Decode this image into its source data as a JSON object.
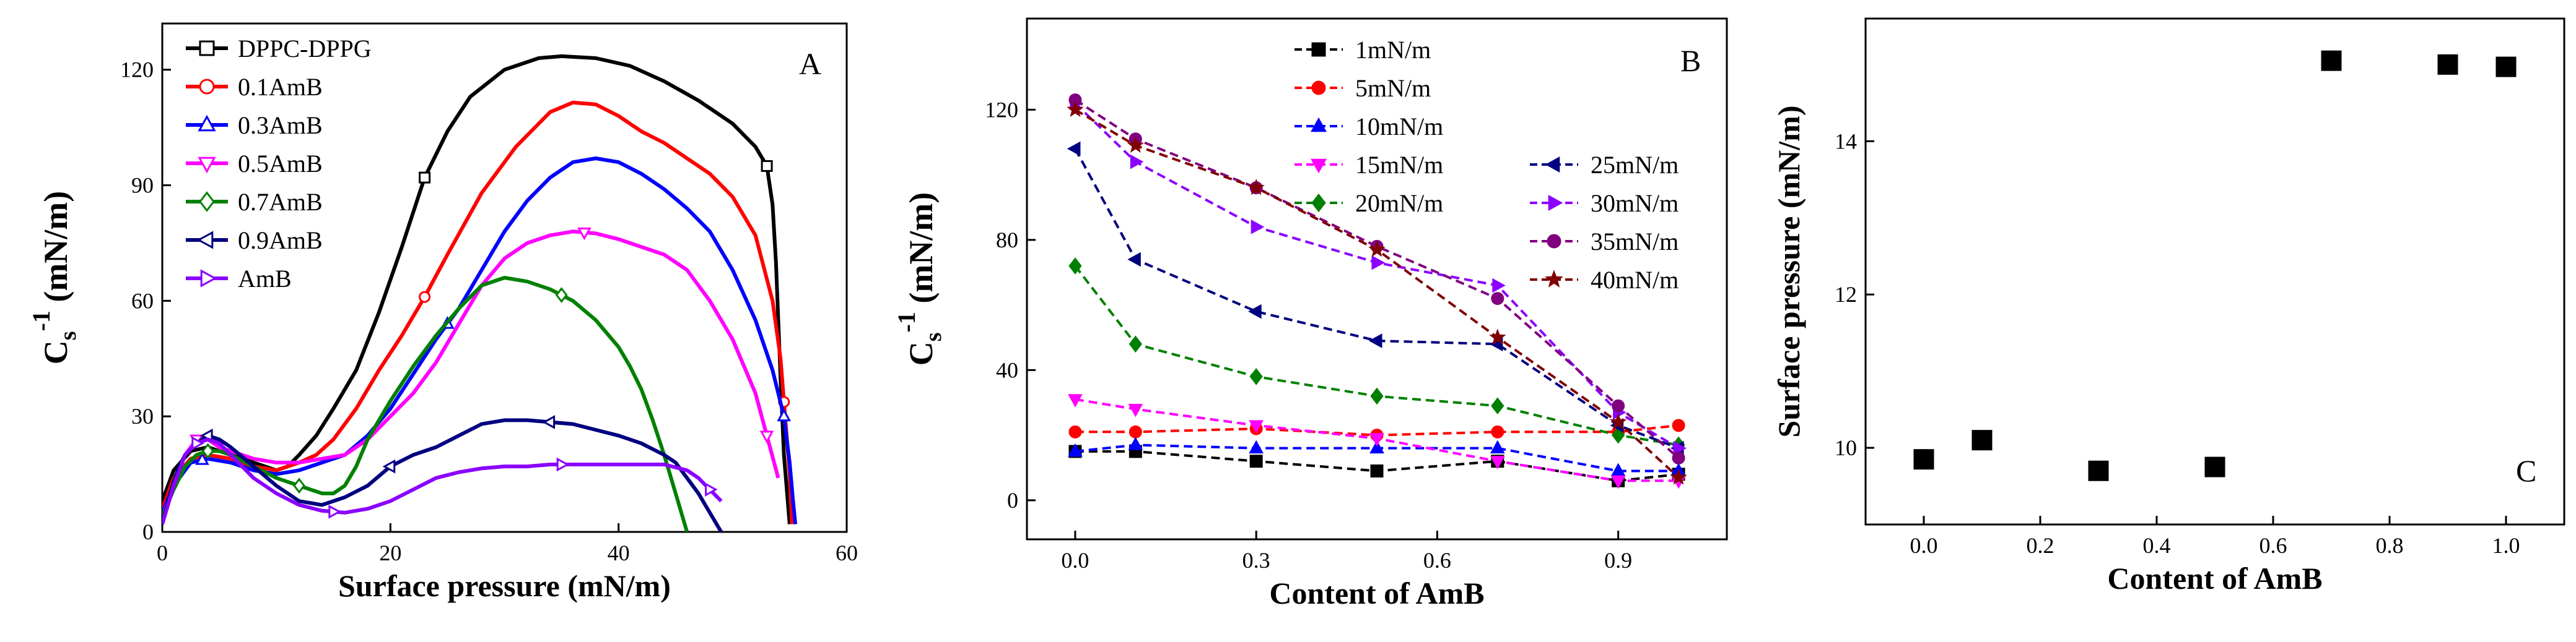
{
  "figure": {
    "panels": [
      "A",
      "B",
      "C"
    ]
  },
  "chart_data": [
    {
      "type": "line",
      "panel_letter": "A",
      "xlabel": "Surface pressure (mN/m)",
      "ylabel_main": "C",
      "ylabel_sub": "s",
      "ylabel_sup": "-1",
      "ylabel_unit": "(mN/m)",
      "xlim": [
        0,
        60
      ],
      "ylim": [
        0,
        132
      ],
      "xticks": [
        0,
        20,
        40,
        60
      ],
      "yticks": [
        0,
        30,
        60,
        90,
        120
      ],
      "legend_position": "top-left",
      "series": [
        {
          "name": "DPPC-DPPG",
          "color": "#000000",
          "marker": "square",
          "x": [
            0,
            1,
            2.5,
            4,
            6,
            8,
            10,
            11,
            12,
            13.5,
            15,
            17,
            19,
            21,
            23,
            25,
            27,
            30,
            33,
            35,
            38,
            41,
            44,
            47,
            50,
            52,
            53,
            53.5,
            53.8,
            54,
            54.2,
            54.5,
            55
          ],
          "y": [
            8,
            16,
            21,
            22,
            20,
            18,
            16,
            17,
            20,
            25,
            32,
            42,
            57,
            74,
            92,
            104,
            113,
            120,
            123,
            123.5,
            123,
            121,
            117,
            112,
            106,
            100,
            95,
            85,
            70,
            55,
            40,
            20,
            2
          ],
          "marker_x": [
            23,
            53
          ]
        },
        {
          "name": "0.1AmB",
          "color": "#ff0000",
          "marker": "circle",
          "x": [
            0,
            1,
            2.5,
            4,
            6,
            8,
            10,
            11,
            12,
            13.5,
            15,
            17,
            19,
            21,
            23,
            25,
            28,
            31,
            34,
            36,
            38,
            40,
            42,
            44,
            46,
            48,
            50,
            52,
            53.5,
            54.2,
            54.6,
            55,
            55.2
          ],
          "y": [
            6,
            14,
            19,
            20,
            19,
            17,
            16,
            17,
            18,
            20,
            24,
            32,
            42,
            51,
            61,
            72,
            88,
            100,
            109,
            111.5,
            111,
            108,
            104,
            101,
            97,
            93,
            87,
            77,
            60,
            45,
            30,
            15,
            2
          ],
          "marker_x": [
            23,
            54.5
          ]
        },
        {
          "name": "0.3AmB",
          "color": "#0000ff",
          "marker": "triangle-up",
          "x": [
            0,
            1,
            2.5,
            4,
            6,
            8,
            10,
            12,
            14,
            16,
            18,
            20,
            22,
            24,
            26,
            28,
            30,
            32,
            34,
            36,
            38,
            40,
            42,
            44,
            46,
            48,
            50,
            52,
            53.5,
            54.5,
            55,
            55.3,
            55.5
          ],
          "y": [
            5,
            12,
            18,
            19,
            18,
            16,
            15,
            16,
            18,
            20,
            25,
            32,
            41,
            50,
            58,
            68,
            78,
            86,
            92,
            96,
            97,
            96,
            93,
            89,
            84,
            78,
            68,
            55,
            42,
            30,
            18,
            8,
            2
          ],
          "marker_x": [
            3.5,
            25,
            54.5
          ]
        },
        {
          "name": "0.5AmB",
          "color": "#ff00ff",
          "marker": "triangle-down",
          "x": [
            0,
            1,
            2,
            3,
            4,
            5,
            6,
            7,
            8,
            10,
            12,
            14,
            16,
            18,
            20,
            22,
            24,
            26,
            28,
            30,
            32,
            34,
            36,
            38,
            40,
            42,
            44,
            46,
            48,
            50,
            52,
            54
          ],
          "y": [
            4,
            12,
            20,
            24,
            24,
            22,
            21,
            20,
            19,
            18,
            18,
            19,
            20,
            24,
            30,
            36,
            44,
            54,
            64,
            71,
            75,
            77,
            78,
            77.5,
            76,
            74,
            72,
            68,
            60,
            50,
            36,
            14
          ],
          "marker_x": [
            3,
            37,
            53
          ]
        },
        {
          "name": "0.7AmB",
          "color": "#008000",
          "marker": "diamond",
          "x": [
            0,
            1,
            2,
            3,
            4,
            5,
            6,
            8,
            10,
            12,
            14,
            15,
            16,
            17,
            18,
            20,
            22,
            24,
            26,
            28,
            30,
            32,
            34,
            36,
            38,
            40,
            41,
            42,
            43,
            44,
            45,
            46
          ],
          "y": [
            4,
            11,
            17,
            20,
            21,
            21,
            20,
            17,
            14,
            12,
            10,
            10,
            12,
            17,
            24,
            34,
            43,
            51,
            58,
            64,
            66,
            65,
            63,
            60,
            55,
            48,
            43,
            37,
            29,
            20,
            10,
            0
          ],
          "marker_x": [
            4,
            12,
            35
          ]
        },
        {
          "name": "0.9AmB",
          "color": "#000080",
          "marker": "triangle-left",
          "x": [
            0,
            0.5,
            1,
            1.5,
            2,
            3,
            4,
            5,
            6,
            8,
            10,
            12,
            14,
            16,
            18,
            20,
            22,
            24,
            26,
            28,
            30,
            32,
            34,
            36,
            38,
            40,
            42,
            44,
            45,
            46,
            47,
            48,
            49
          ],
          "y": [
            2,
            8,
            13,
            17,
            20,
            23,
            25,
            24,
            22,
            17,
            12,
            8,
            7,
            9,
            12,
            17,
            20,
            22,
            25,
            28,
            29,
            29,
            28.5,
            28,
            26.5,
            25,
            23,
            20,
            18,
            14,
            10,
            5,
            0
          ],
          "marker_x": [
            4,
            20,
            34
          ]
        },
        {
          "name": "AmB",
          "color": "#8b00ff",
          "marker": "triangle-right",
          "x": [
            0,
            0.5,
            1,
            1.5,
            2,
            3,
            4,
            5,
            6,
            8,
            10,
            12,
            14,
            16,
            18,
            20,
            22,
            24,
            26,
            28,
            30,
            32,
            34,
            36,
            38,
            40,
            42,
            44,
            46,
            47,
            48,
            49
          ],
          "y": [
            2,
            7,
            12,
            16,
            20,
            23,
            24,
            23,
            20,
            14,
            10,
            7,
            5.5,
            5,
            6,
            8,
            11,
            14,
            15.5,
            16.5,
            17,
            17,
            17.5,
            17.5,
            17.5,
            17.5,
            17.5,
            17.5,
            16,
            14,
            11,
            8
          ],
          "marker_x": [
            3,
            15,
            35,
            48
          ]
        }
      ]
    },
    {
      "type": "line",
      "panel_letter": "B",
      "xlabel": "Content of AmB",
      "ylabel_main": "C",
      "ylabel_sub": "s",
      "ylabel_sup": "-1",
      "ylabel_unit": "(mN/m)",
      "xlim": [
        -0.08,
        1.08
      ],
      "ylim": [
        -12,
        148
      ],
      "xticks": [
        0.0,
        0.3,
        0.6,
        0.9
      ],
      "yticks": [
        0,
        40,
        80,
        120
      ],
      "legend_position": "top",
      "line_style": "dashed",
      "x": [
        0.0,
        0.1,
        0.3,
        0.5,
        0.7,
        0.9,
        1.0
      ],
      "series": [
        {
          "name": "1mN/m",
          "color": "#000000",
          "marker": "square",
          "values": [
            15,
            15,
            12,
            9,
            12,
            6,
            8
          ]
        },
        {
          "name": "5mN/m",
          "color": "#ff0000",
          "marker": "circle",
          "values": [
            21,
            21,
            22,
            20,
            21,
            21,
            23
          ]
        },
        {
          "name": "10mN/m",
          "color": "#0000ff",
          "marker": "triangle-up",
          "values": [
            15,
            17,
            16,
            16,
            16,
            9,
            9
          ]
        },
        {
          "name": "15mN/m",
          "color": "#ff00ff",
          "marker": "triangle-down",
          "values": [
            31,
            28,
            23,
            19,
            12,
            6,
            6
          ]
        },
        {
          "name": "20mN/m",
          "color": "#008000",
          "marker": "diamond",
          "values": [
            72,
            48,
            38,
            32,
            29,
            20,
            17
          ]
        },
        {
          "name": "25mN/m",
          "color": "#000080",
          "marker": "triangle-left",
          "values": [
            108,
            74,
            58,
            49,
            48,
            23,
            16
          ]
        },
        {
          "name": "30mN/m",
          "color": "#8b00ff",
          "marker": "triangle-right",
          "values": [
            122,
            104,
            84,
            73,
            66,
            27,
            16
          ]
        },
        {
          "name": "35mN/m",
          "color": "#800080",
          "marker": "circle",
          "values": [
            123,
            111,
            96,
            78,
            62,
            29,
            13
          ]
        },
        {
          "name": "40mN/m",
          "color": "#800000",
          "marker": "star",
          "values": [
            120,
            109,
            96,
            77,
            50,
            24,
            7
          ]
        }
      ]
    },
    {
      "type": "scatter",
      "panel_letter": "C",
      "xlabel": "Content of AmB",
      "ylabel": "Surface pressure (mN/m)",
      "xlim": [
        -0.1,
        1.1
      ],
      "ylim": [
        9.0,
        15.6
      ],
      "xticks": [
        0.0,
        0.2,
        0.4,
        0.6,
        0.8,
        1.0
      ],
      "yticks": [
        10,
        12,
        14
      ],
      "marker": "square",
      "color": "#000000",
      "x": [
        0.0,
        0.1,
        0.3,
        0.5,
        0.7,
        0.9,
        1.0
      ],
      "y": [
        9.85,
        10.1,
        9.7,
        9.75,
        15.05,
        15.0,
        14.97
      ]
    }
  ]
}
